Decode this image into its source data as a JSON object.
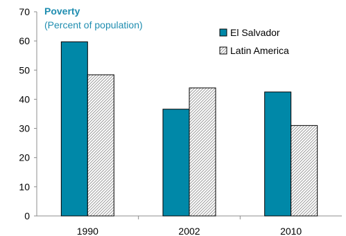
{
  "chart_data": {
    "type": "bar",
    "title": "Poverty",
    "subtitle": "(Percent of population)",
    "categories": [
      "1990",
      "2002",
      "2010"
    ],
    "series": [
      {
        "name": "El Salvador",
        "values": [
          59.7,
          36.6,
          42.5
        ],
        "color": "#0088a8",
        "pattern": "solid"
      },
      {
        "name": "Latin America",
        "values": [
          48.4,
          43.9,
          31.0
        ],
        "color": "#bdbdbd",
        "pattern": "hatched"
      }
    ],
    "ylim": [
      0,
      70
    ],
    "yticks": [
      0,
      10,
      20,
      30,
      40,
      50,
      60,
      70
    ],
    "xlabel": "",
    "ylabel": "",
    "grid": false,
    "legend": "top-right",
    "title_color": "#1f8db0"
  }
}
